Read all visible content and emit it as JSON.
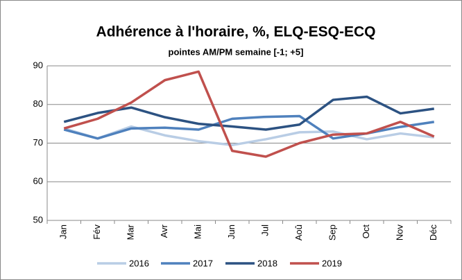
{
  "chart_data": {
    "type": "line",
    "title": "Adhérence à l'horaire, %, ELQ-ESQ-ECQ",
    "subtitle": "pointes AM/PM semaine [-1; +5]",
    "categories": [
      "Jan",
      "Fév",
      "Mar",
      "Avr",
      "Mai",
      "Jun",
      "Jul",
      "Aoû",
      "Sep",
      "Oct",
      "Nov",
      "Déc"
    ],
    "series": [
      {
        "name": "2016",
        "color": "#b9cde5",
        "values": [
          73.8,
          71.2,
          74.3,
          72,
          70.5,
          69.5,
          71,
          72.8,
          73,
          71,
          72.5,
          71.5
        ]
      },
      {
        "name": "2017",
        "color": "#4f81bd",
        "values": [
          73.5,
          71.2,
          73.8,
          74,
          73.5,
          76.3,
          76.8,
          77,
          71.2,
          72.5,
          74.2,
          75.5
        ]
      },
      {
        "name": "2018",
        "color": "#2c5282",
        "values": [
          75.5,
          77.8,
          79.2,
          76.7,
          75,
          74.3,
          73.5,
          74.8,
          81.2,
          82,
          77.7,
          78.9
        ]
      },
      {
        "name": "2019",
        "color": "#c0504d",
        "values": [
          73.8,
          76.3,
          80.5,
          86.3,
          88.5,
          68,
          66.5,
          70,
          72.2,
          72.5,
          75.5,
          71.7
        ]
      }
    ],
    "ylim": [
      50,
      90
    ],
    "yticks": [
      50,
      60,
      70,
      80,
      90
    ],
    "grid": true,
    "legend": "bottom"
  }
}
